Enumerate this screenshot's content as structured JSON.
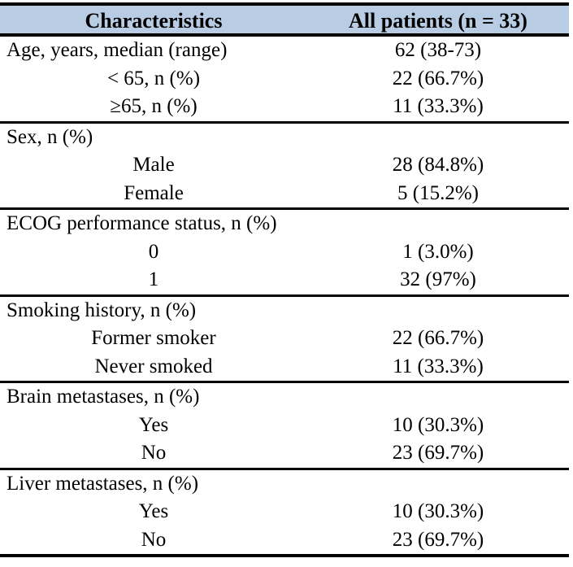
{
  "table": {
    "header": {
      "characteristics": "Characteristics",
      "all_patients": "All patients (n = 33)"
    },
    "sections": [
      {
        "rows": [
          {
            "label": "Age, years, median (range)",
            "value": "62 (38-73)",
            "indent": false
          },
          {
            "label": "< 65, n (%)",
            "value": "22 (66.7%)",
            "indent": true
          },
          {
            "label": "≥65, n (%)",
            "value": "11 (33.3%)",
            "indent": true
          }
        ]
      },
      {
        "rows": [
          {
            "label": "Sex, n (%)",
            "value": "",
            "indent": false
          },
          {
            "label": "Male",
            "value": "28 (84.8%)",
            "indent": true
          },
          {
            "label": "Female",
            "value": "5 (15.2%)",
            "indent": true
          }
        ]
      },
      {
        "rows": [
          {
            "label": "ECOG performance status, n (%)",
            "value": "",
            "indent": false
          },
          {
            "label": "0",
            "value": "1 (3.0%)",
            "indent": true
          },
          {
            "label": "1",
            "value": "32 (97%)",
            "indent": true
          }
        ]
      },
      {
        "rows": [
          {
            "label": "Smoking history, n (%)",
            "value": "",
            "indent": false
          },
          {
            "label": "Former smoker",
            "value": "22 (66.7%)",
            "indent": true
          },
          {
            "label": "Never smoked",
            "value": "11 (33.3%)",
            "indent": true
          }
        ]
      },
      {
        "rows": [
          {
            "label": "Brain metastases, n (%)",
            "value": "",
            "indent": false
          },
          {
            "label": "Yes",
            "value": "10 (30.3%)",
            "indent": true
          },
          {
            "label": "No",
            "value": "23 (69.7%)",
            "indent": true
          }
        ]
      },
      {
        "rows": [
          {
            "label": "Liver metastases, n (%)",
            "value": "",
            "indent": false
          },
          {
            "label": "Yes",
            "value": "10 (30.3%)",
            "indent": true
          },
          {
            "label": "No",
            "value": "23 (69.7%)",
            "indent": true
          }
        ]
      }
    ],
    "colors": {
      "header_bg": "#B8CCE4",
      "border": "#000000",
      "text": "#000000"
    }
  }
}
